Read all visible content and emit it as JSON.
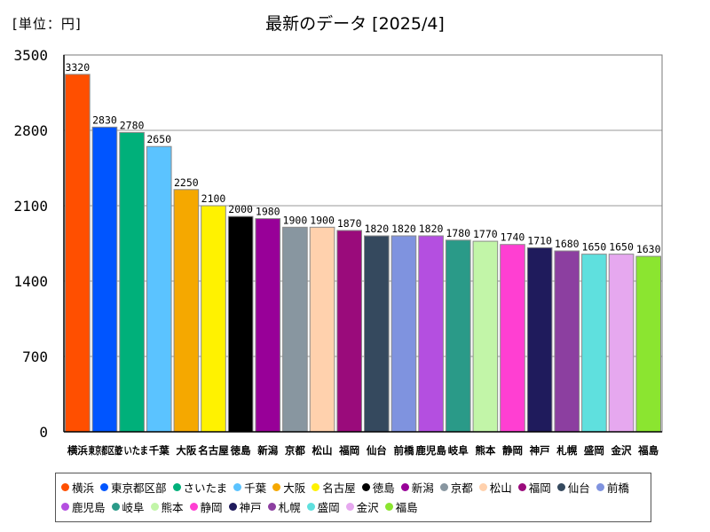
{
  "chart_data": {
    "type": "bar",
    "title": "最新のデータ [2025/4]",
    "unit_label": "[単位：円]",
    "ylim": [
      0,
      3500
    ],
    "yticks": [
      0,
      700,
      1400,
      2100,
      2800,
      3500
    ],
    "grid": true,
    "legend_position": "bottom",
    "categories": [
      "横浜",
      "東京都区部",
      "さいたま",
      "千葉",
      "大阪",
      "名古屋",
      "徳島",
      "新潟",
      "京都",
      "松山",
      "福岡",
      "仙台",
      "前橋",
      "鹿児島",
      "岐阜",
      "熊本",
      "静岡",
      "神戸",
      "札幌",
      "盛岡",
      "金沢",
      "福島"
    ],
    "values": [
      3320,
      2830,
      2780,
      2650,
      2250,
      2100,
      2000,
      1980,
      1900,
      1900,
      1870,
      1820,
      1820,
      1820,
      1780,
      1770,
      1740,
      1710,
      1680,
      1650,
      1650,
      1630
    ],
    "colors": [
      "#ff4f00",
      "#0055ff",
      "#00b07a",
      "#5bc3ff",
      "#f5a800",
      "#fff200",
      "#000000",
      "#980098",
      "#8896a0",
      "#ffd1ad",
      "#9a0b7b",
      "#35495e",
      "#7f93df",
      "#b44fe0",
      "#2a9a88",
      "#c2f5a8",
      "#ff3fd2",
      "#1f1b5c",
      "#8c3fa0",
      "#5fe0de",
      "#e6a8ef",
      "#8be530"
    ],
    "legend": [
      "横浜",
      "東京都区部",
      "さいたま",
      "千葉",
      "大阪",
      "名古屋",
      "徳島",
      "新潟",
      "京都",
      "松山",
      "福岡",
      "仙台",
      "前橋",
      "鹿児島",
      "岐阜",
      "熊本",
      "静岡",
      "神戸",
      "札幌",
      "盛岡",
      "金沢",
      "福島"
    ]
  }
}
